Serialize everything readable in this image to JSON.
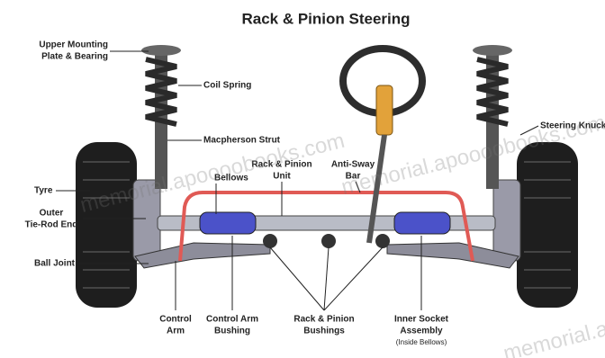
{
  "title": "Rack & Pinion Steering",
  "labels": [
    {
      "lines": [
        "Upper Mounting",
        "Plate & Bearing"
      ]
    },
    {
      "lines": [
        "Coil Spring"
      ]
    },
    {
      "lines": [
        "Macpherson Strut"
      ]
    },
    {
      "lines": [
        "Tyre"
      ]
    },
    {
      "lines": [
        "Outer",
        "Tie-Rod End"
      ]
    },
    {
      "lines": [
        "Ball Joint"
      ]
    },
    {
      "lines": [
        "Bellows"
      ]
    },
    {
      "lines": [
        "Rack & Pinion",
        "Unit"
      ]
    },
    {
      "lines": [
        "Anti-Sway",
        "Bar"
      ]
    },
    {
      "lines": [
        "Steering Knuckle"
      ]
    },
    {
      "lines": [
        "Control",
        "Arm"
      ]
    },
    {
      "lines": [
        "Control Arm",
        "Bushing"
      ]
    },
    {
      "lines": [
        "Rack & Pinion",
        "Bushings"
      ]
    },
    {
      "lines": [
        "Inner Socket",
        "Assembly",
        "(Inside Bellows)"
      ]
    }
  ],
  "watermarks": [
    "memorial.apoooobooks.com",
    "memorial.apoooobooks.com",
    "memorial.apoooobooks.com"
  ]
}
